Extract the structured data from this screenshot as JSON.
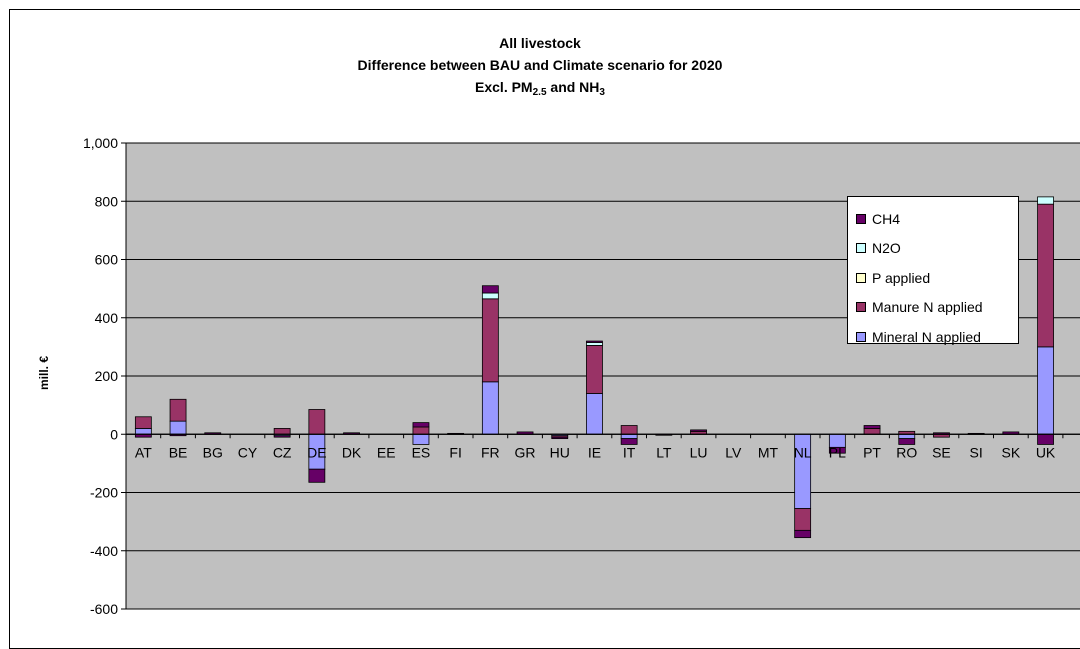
{
  "chart_data": {
    "type": "bar",
    "stacked": true,
    "title_lines": [
      "All livestock",
      "Difference between BAU and Climate scenario for 2020"
    ],
    "title_line3": {
      "prefix": "Excl. PM",
      "pm_subscript": "2.5",
      "middle": " and NH",
      "nh_subscript": "3"
    },
    "ylabel": "mill. €",
    "ylim": [
      -600,
      1000
    ],
    "yticks": [
      -600,
      -400,
      -200,
      0,
      200,
      400,
      600,
      800,
      1000
    ],
    "ytick_labels": [
      "-600",
      "-400",
      "-200",
      "0",
      "200",
      "400",
      "600",
      "800",
      "1,000"
    ],
    "grid": true,
    "legend_position": "right",
    "categories": [
      "AT",
      "BE",
      "BG",
      "CY",
      "CZ",
      "DE",
      "DK",
      "EE",
      "ES",
      "FI",
      "FR",
      "GR",
      "HU",
      "IE",
      "IT",
      "LT",
      "LU",
      "LV",
      "MT",
      "NL",
      "PL",
      "PT",
      "RO",
      "SE",
      "SI",
      "SK",
      "UK"
    ],
    "series": [
      {
        "name": "Mineral N applied",
        "color": "#9999FF",
        "values": [
          20,
          45,
          0,
          0,
          -5,
          -120,
          0,
          0,
          -35,
          0,
          180,
          0,
          -5,
          140,
          -15,
          0,
          0,
          0,
          0,
          -255,
          -45,
          0,
          -15,
          0,
          0,
          0,
          300
        ]
      },
      {
        "name": "Manure N applied",
        "color": "#993366",
        "values": [
          40,
          75,
          0,
          0,
          20,
          85,
          0,
          0,
          25,
          0,
          285,
          0,
          -5,
          165,
          30,
          0,
          10,
          0,
          0,
          -75,
          0,
          20,
          10,
          -10,
          0,
          0,
          490
        ]
      },
      {
        "name": "P applied",
        "color": "#FFFFCC",
        "values": [
          0,
          0,
          0,
          0,
          0,
          0,
          0,
          0,
          0,
          0,
          0,
          0,
          0,
          0,
          0,
          0,
          0,
          0,
          0,
          0,
          0,
          0,
          0,
          0,
          0,
          0,
          0
        ]
      },
      {
        "name": "N2O",
        "color": "#CCFFFF",
        "values": [
          0,
          0,
          0,
          0,
          0,
          0,
          0,
          0,
          0,
          0,
          20,
          0,
          0,
          10,
          0,
          0,
          0,
          0,
          0,
          0,
          0,
          0,
          0,
          0,
          0,
          0,
          25
        ]
      },
      {
        "name": "CH4",
        "color": "#660066",
        "values": [
          -10,
          -5,
          5,
          0,
          -5,
          -45,
          5,
          0,
          15,
          3,
          25,
          8,
          -5,
          5,
          -20,
          -3,
          5,
          0,
          0,
          -25,
          -20,
          10,
          -20,
          5,
          3,
          8,
          -35
        ]
      }
    ],
    "legend_order": [
      "CH4",
      "N2O",
      "P applied",
      "Manure N applied",
      "Mineral N applied"
    ]
  }
}
